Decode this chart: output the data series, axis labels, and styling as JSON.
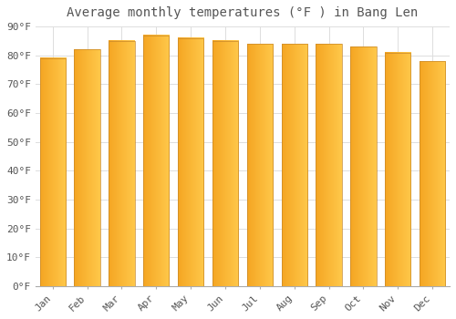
{
  "title": "Average monthly temperatures (°F ) in Bang Len",
  "months": [
    "Jan",
    "Feb",
    "Mar",
    "Apr",
    "May",
    "Jun",
    "Jul",
    "Aug",
    "Sep",
    "Oct",
    "Nov",
    "Dec"
  ],
  "values": [
    79,
    82,
    85,
    87,
    86,
    85,
    84,
    84,
    84,
    83,
    81,
    78
  ],
  "bar_color_left": "#F5A623",
  "bar_color_right": "#FFC84A",
  "bar_edge_color": "#C8882A",
  "background_color": "#FFFFFF",
  "grid_color": "#DDDDDD",
  "ylim": [
    0,
    90
  ],
  "yticks": [
    0,
    10,
    20,
    30,
    40,
    50,
    60,
    70,
    80,
    90
  ],
  "ytick_labels": [
    "0°F",
    "10°F",
    "20°F",
    "30°F",
    "40°F",
    "50°F",
    "60°F",
    "70°F",
    "80°F",
    "90°F"
  ],
  "title_fontsize": 10,
  "tick_fontsize": 8,
  "font_color": "#555555"
}
